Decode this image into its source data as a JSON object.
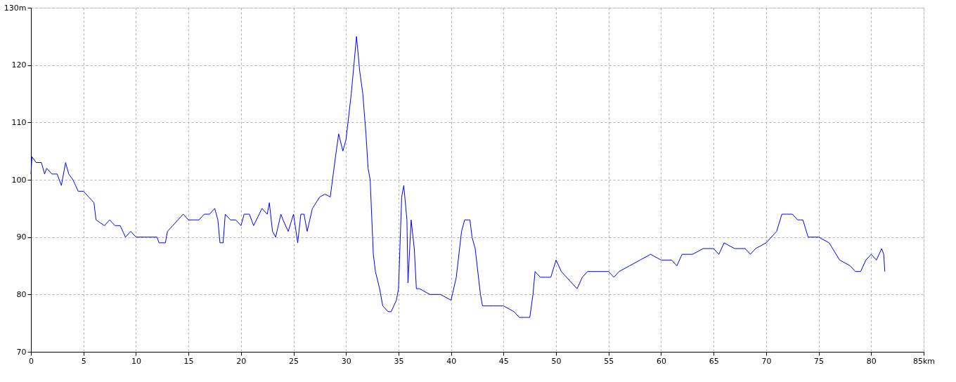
{
  "chart_data": {
    "type": "line",
    "x": [
      0,
      0.1,
      0.5,
      1,
      1.3,
      1.5,
      2,
      2.5,
      2.9,
      3.3,
      3.6,
      4,
      4.5,
      5,
      5.5,
      6,
      6.2,
      7,
      7.5,
      8,
      8.5,
      9,
      9.5,
      10,
      11,
      12,
      12.2,
      12.8,
      13,
      13.5,
      14,
      14.5,
      15,
      15.5,
      16,
      16.5,
      17,
      17.5,
      17.8,
      18,
      18.3,
      18.5,
      19,
      19.5,
      20,
      20.3,
      20.8,
      21.2,
      22,
      22.5,
      22.7,
      23,
      23.3,
      23.8,
      24,
      24.5,
      25,
      25.4,
      25.7,
      26,
      26.3,
      26.8,
      27.5,
      28,
      28.5,
      29,
      29.3,
      29.7,
      30,
      30.5,
      30.8,
      31,
      31.3,
      31.6,
      31.9,
      32.1,
      32.3,
      32.6,
      32.8,
      33.2,
      33.5,
      34,
      34.3,
      34.8,
      35,
      35.3,
      35.5,
      35.8,
      35.9,
      36.2,
      36.5,
      36.7,
      37,
      38,
      39,
      40,
      40.5,
      41,
      41.3,
      41.8,
      42,
      42.3,
      42.8,
      43,
      44,
      45,
      46,
      46.5,
      47,
      47.5,
      47.8,
      48,
      48.5,
      49,
      49.5,
      50,
      50.5,
      51,
      51.5,
      52,
      52.5,
      53,
      54,
      55,
      55.5,
      56,
      57,
      58,
      59,
      60,
      61,
      61.5,
      62,
      63,
      64,
      65,
      65.5,
      66,
      67,
      68,
      68.5,
      69,
      70,
      71,
      71.5,
      72,
      72.5,
      73,
      73.5,
      74,
      75,
      76,
      77,
      78,
      78.5,
      79,
      79.5,
      80,
      80.5,
      81,
      81.2,
      81.3
    ],
    "series": [
      {
        "color": "#0000ff",
        "values": [
          101,
          104,
          103,
          103,
          101,
          102,
          101,
          101,
          99,
          103,
          101,
          100,
          98,
          98,
          97,
          96,
          93,
          92,
          93,
          92,
          92,
          90,
          91,
          90,
          90,
          90,
          89,
          89,
          91,
          92,
          93,
          94,
          93,
          93,
          93,
          94,
          94,
          95,
          93,
          89,
          89,
          94,
          93,
          93,
          92,
          94,
          94,
          92,
          95,
          94,
          96,
          91,
          90,
          94,
          93,
          91,
          94,
          89,
          94,
          94,
          91,
          95,
          97,
          97.5,
          97,
          104,
          108,
          105,
          107,
          115,
          121,
          125,
          119,
          115,
          108,
          102,
          100,
          87,
          84,
          81,
          78,
          77,
          77,
          79,
          81,
          97,
          99,
          93,
          82,
          93,
          88,
          81,
          81,
          80,
          80,
          79,
          83,
          91,
          93,
          93,
          90,
          88,
          80,
          78,
          78,
          78,
          77,
          76,
          76,
          76,
          80,
          84,
          83,
          83,
          83,
          86,
          84,
          83,
          82,
          81,
          83,
          84,
          84,
          84,
          83,
          84,
          85,
          86,
          87,
          86,
          86,
          85,
          87,
          87,
          88,
          88,
          87,
          89,
          88,
          88,
          87,
          88,
          89,
          91,
          94,
          94,
          94,
          93,
          93,
          90,
          90,
          89,
          86,
          85,
          84,
          84,
          86,
          87,
          86,
          88,
          87,
          84
        ]
      }
    ],
    "xlim": [
      0,
      85
    ],
    "xticks": [
      0,
      5,
      10,
      15,
      20,
      25,
      30,
      35,
      40,
      45,
      50,
      55,
      60,
      65,
      70,
      75,
      80,
      {
        "value": 85,
        "label": "85km"
      }
    ],
    "ylim": [
      70,
      130
    ],
    "yticks": [
      70,
      80,
      90,
      100,
      110,
      120,
      {
        "value": 130,
        "label": "130m"
      }
    ],
    "grid": true,
    "line_style": "solid",
    "marker": "none"
  }
}
